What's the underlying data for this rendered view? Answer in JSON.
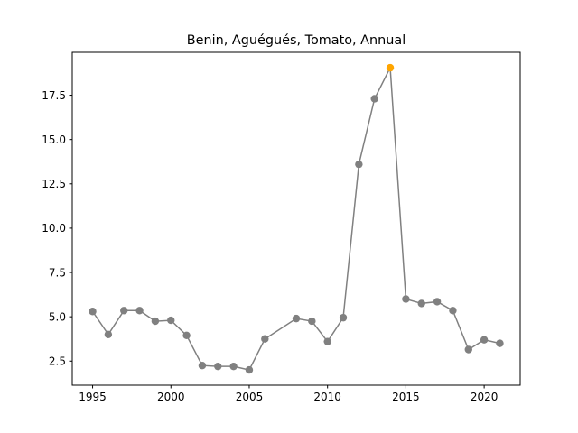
{
  "chart_data": {
    "type": "line",
    "title": "Benin, Aguégués, Tomato, Annual",
    "xlabel": "",
    "ylabel": "",
    "xlim": [
      1993.7,
      2022.3
    ],
    "ylim": [
      1.14,
      19.92
    ],
    "x_ticks": [
      1995,
      2000,
      2005,
      2010,
      2015,
      2020
    ],
    "x_tick_labels": [
      "1995",
      "2000",
      "2005",
      "2010",
      "2015",
      "2020"
    ],
    "y_ticks": [
      2.5,
      5.0,
      7.5,
      10.0,
      12.5,
      15.0,
      17.5
    ],
    "y_tick_labels": [
      "2.5",
      "5.0",
      "7.5",
      "10.0",
      "12.5",
      "15.0",
      "17.5"
    ],
    "grid": false,
    "series": [
      {
        "name": "Annual",
        "color": "#808080",
        "x": [
          1995,
          1996,
          1997,
          1998,
          1999,
          2000,
          2001,
          2002,
          2003,
          2004,
          2005,
          2006,
          2008,
          2009,
          2010,
          2011,
          2012,
          2013,
          2014,
          2015,
          2016,
          2017,
          2018,
          2019,
          2020,
          2021
        ],
        "values": [
          5.3,
          4.0,
          5.35,
          5.35,
          4.75,
          4.8,
          3.95,
          2.25,
          2.2,
          2.2,
          2.0,
          3.75,
          4.9,
          4.75,
          3.6,
          4.95,
          13.6,
          17.3,
          19.05,
          6.0,
          5.75,
          5.85,
          5.35,
          3.15,
          3.7,
          3.5
        ]
      }
    ],
    "highlight": {
      "x": 2014,
      "value": 19.05,
      "color": "#FFA500"
    }
  }
}
